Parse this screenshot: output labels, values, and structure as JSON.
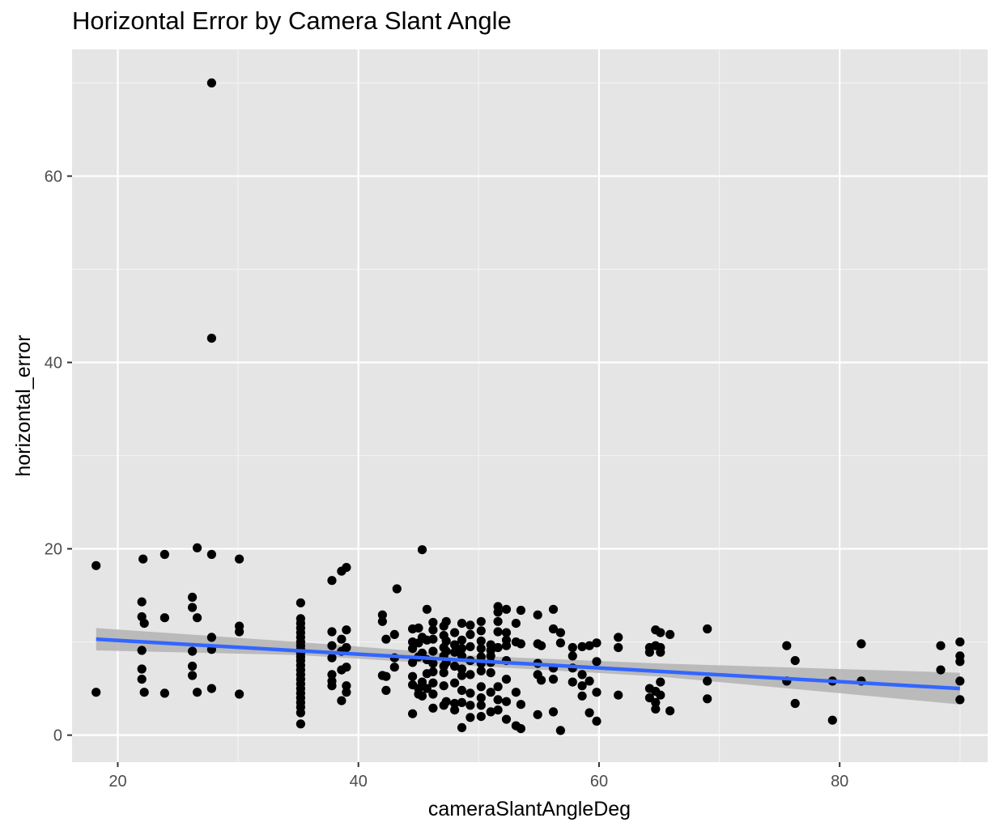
{
  "chart_data": {
    "type": "scatter",
    "title": "Horizontal Error by Camera Slant Angle",
    "xlabel": "cameraSlantAngleDeg",
    "ylabel": "horizontal_error",
    "xlim": [
      16.2,
      92.3
    ],
    "ylim": [
      -2.9,
      73.6
    ],
    "x_ticks": [
      20,
      40,
      60,
      80
    ],
    "y_ticks": [
      0,
      20,
      40,
      60
    ],
    "grid": true,
    "background": "#e5e5e5",
    "point_color": "#000000",
    "trend_color": "#3366ff",
    "band_color": "#b3b3b3",
    "trend_line": {
      "x": [
        18.2,
        90
      ],
      "y": [
        10.3,
        5.0
      ]
    },
    "confidence_band": {
      "x": [
        18.2,
        35,
        50,
        65,
        90
      ],
      "upper": [
        11.5,
        10.0,
        8.5,
        7.7,
        6.7
      ],
      "lower": [
        9.1,
        8.6,
        7.4,
        6.3,
        3.3
      ]
    },
    "points": [
      [
        18.2,
        18.2
      ],
      [
        18.2,
        4.6
      ],
      [
        22.1,
        18.9
      ],
      [
        22.0,
        14.3
      ],
      [
        22.0,
        12.7
      ],
      [
        22.2,
        12.0
      ],
      [
        22.0,
        9.1
      ],
      [
        22.0,
        7.1
      ],
      [
        22.0,
        6.0
      ],
      [
        22.2,
        4.6
      ],
      [
        23.9,
        19.4
      ],
      [
        23.9,
        12.6
      ],
      [
        23.9,
        4.5
      ],
      [
        26.6,
        20.1
      ],
      [
        26.2,
        14.8
      ],
      [
        26.2,
        13.7
      ],
      [
        26.6,
        12.6
      ],
      [
        26.2,
        9.0
      ],
      [
        26.2,
        7.4
      ],
      [
        26.2,
        6.4
      ],
      [
        26.6,
        4.6
      ],
      [
        27.8,
        70.0
      ],
      [
        27.8,
        42.6
      ],
      [
        27.8,
        19.4
      ],
      [
        27.8,
        10.5
      ],
      [
        27.8,
        9.2
      ],
      [
        27.8,
        5.0
      ],
      [
        30.1,
        18.9
      ],
      [
        30.1,
        11.7
      ],
      [
        30.1,
        11.1
      ],
      [
        30.1,
        4.4
      ],
      [
        35.2,
        14.2
      ],
      [
        35.2,
        12.5
      ],
      [
        35.2,
        12.0
      ],
      [
        35.2,
        11.5
      ],
      [
        35.2,
        11.0
      ],
      [
        35.2,
        10.5
      ],
      [
        35.2,
        10.0
      ],
      [
        35.2,
        9.6
      ],
      [
        35.2,
        9.2
      ],
      [
        35.2,
        8.8
      ],
      [
        35.2,
        8.4
      ],
      [
        35.2,
        8.0
      ],
      [
        35.2,
        7.5
      ],
      [
        35.2,
        7.0
      ],
      [
        35.2,
        6.5
      ],
      [
        35.2,
        6.0
      ],
      [
        35.2,
        5.5
      ],
      [
        35.2,
        5.0
      ],
      [
        35.2,
        4.5
      ],
      [
        35.2,
        4.0
      ],
      [
        35.2,
        3.5
      ],
      [
        35.2,
        3.0
      ],
      [
        35.2,
        2.4
      ],
      [
        35.2,
        1.2
      ],
      [
        37.8,
        16.6
      ],
      [
        37.8,
        11.1
      ],
      [
        37.8,
        9.6
      ],
      [
        37.8,
        8.3
      ],
      [
        37.8,
        6.5
      ],
      [
        37.8,
        5.8
      ],
      [
        37.8,
        5.3
      ],
      [
        38.6,
        17.6
      ],
      [
        38.6,
        10.3
      ],
      [
        38.6,
        9.0
      ],
      [
        38.6,
        7.0
      ],
      [
        38.6,
        3.7
      ],
      [
        39.0,
        18.0
      ],
      [
        39.0,
        11.3
      ],
      [
        39.0,
        9.4
      ],
      [
        39.0,
        7.3
      ],
      [
        39.0,
        5.3
      ],
      [
        39.0,
        4.6
      ],
      [
        42.0,
        12.9
      ],
      [
        42.0,
        12.2
      ],
      [
        42.0,
        6.4
      ],
      [
        42.3,
        10.3
      ],
      [
        42.3,
        6.3
      ],
      [
        42.3,
        4.8
      ],
      [
        43.0,
        10.8
      ],
      [
        43.2,
        15.7
      ],
      [
        43.0,
        8.3
      ],
      [
        43.0,
        7.3
      ],
      [
        44.5,
        11.4
      ],
      [
        44.5,
        10.0
      ],
      [
        44.5,
        9.3
      ],
      [
        44.5,
        7.8
      ],
      [
        44.5,
        6.3
      ],
      [
        44.5,
        5.4
      ],
      [
        44.5,
        2.3
      ],
      [
        45.0,
        11.5
      ],
      [
        45.0,
        9.9
      ],
      [
        45.0,
        8.4
      ],
      [
        45.0,
        5.0
      ],
      [
        45.0,
        4.4
      ],
      [
        45.3,
        19.9
      ],
      [
        45.3,
        10.5
      ],
      [
        45.3,
        8.8
      ],
      [
        45.3,
        5.7
      ],
      [
        45.3,
        4.2
      ],
      [
        45.7,
        13.5
      ],
      [
        45.7,
        10.2
      ],
      [
        45.7,
        8.1
      ],
      [
        45.7,
        6.6
      ],
      [
        45.7,
        5.0
      ],
      [
        46.2,
        12.1
      ],
      [
        46.2,
        11.3
      ],
      [
        46.2,
        10.3
      ],
      [
        46.2,
        9.0
      ],
      [
        46.2,
        7.7
      ],
      [
        46.2,
        6.8
      ],
      [
        46.2,
        5.6
      ],
      [
        46.2,
        4.4
      ],
      [
        46.2,
        2.9
      ],
      [
        47.1,
        11.7
      ],
      [
        47.1,
        10.7
      ],
      [
        47.1,
        9.4
      ],
      [
        47.1,
        8.5
      ],
      [
        47.1,
        7.4
      ],
      [
        47.1,
        6.7
      ],
      [
        47.1,
        5.3
      ],
      [
        47.1,
        3.2
      ],
      [
        47.3,
        12.2
      ],
      [
        47.3,
        10.1
      ],
      [
        47.3,
        9.0
      ],
      [
        47.3,
        7.8
      ],
      [
        47.3,
        3.6
      ],
      [
        48.0,
        11.0
      ],
      [
        48.0,
        9.7
      ],
      [
        48.0,
        8.9
      ],
      [
        48.0,
        7.4
      ],
      [
        48.0,
        5.6
      ],
      [
        48.0,
        3.4
      ],
      [
        48.0,
        2.7
      ],
      [
        48.6,
        12.0
      ],
      [
        48.6,
        10.2
      ],
      [
        48.6,
        9.3
      ],
      [
        48.6,
        8.5
      ],
      [
        48.6,
        7.1
      ],
      [
        48.6,
        6.4
      ],
      [
        48.6,
        4.8
      ],
      [
        48.6,
        3.5
      ],
      [
        48.6,
        0.8
      ],
      [
        49.3,
        11.8
      ],
      [
        49.3,
        10.8
      ],
      [
        49.3,
        9.5
      ],
      [
        49.3,
        8.0
      ],
      [
        49.3,
        6.5
      ],
      [
        49.3,
        4.5
      ],
      [
        49.3,
        3.2
      ],
      [
        49.3,
        1.9
      ],
      [
        50.2,
        12.2
      ],
      [
        50.2,
        11.2
      ],
      [
        50.2,
        10.1
      ],
      [
        50.2,
        9.3
      ],
      [
        50.2,
        8.4
      ],
      [
        50.2,
        7.7
      ],
      [
        50.2,
        6.9
      ],
      [
        50.2,
        5.2
      ],
      [
        50.2,
        4.0
      ],
      [
        50.2,
        3.2
      ],
      [
        50.2,
        2.0
      ],
      [
        51.0,
        9.7
      ],
      [
        51.0,
        9.1
      ],
      [
        51.0,
        8.5
      ],
      [
        51.0,
        7.8
      ],
      [
        51.0,
        6.7
      ],
      [
        51.0,
        4.6
      ],
      [
        51.0,
        2.5
      ],
      [
        51.6,
        13.8
      ],
      [
        51.6,
        13.2
      ],
      [
        51.6,
        12.2
      ],
      [
        51.6,
        11.1
      ],
      [
        51.6,
        9.4
      ],
      [
        51.6,
        5.2
      ],
      [
        51.6,
        3.8
      ],
      [
        51.6,
        2.7
      ],
      [
        52.3,
        13.5
      ],
      [
        52.3,
        11.0
      ],
      [
        52.3,
        10.2
      ],
      [
        52.3,
        9.6
      ],
      [
        52.3,
        8.0
      ],
      [
        52.3,
        6.0
      ],
      [
        52.3,
        3.6
      ],
      [
        52.3,
        1.7
      ],
      [
        53.1,
        12.0
      ],
      [
        53.1,
        10.0
      ],
      [
        53.1,
        4.6
      ],
      [
        53.1,
        1.0
      ],
      [
        53.5,
        13.4
      ],
      [
        53.5,
        9.8
      ],
      [
        53.5,
        3.3
      ],
      [
        53.5,
        0.7
      ],
      [
        54.9,
        12.9
      ],
      [
        54.9,
        9.8
      ],
      [
        54.9,
        7.7
      ],
      [
        54.9,
        6.5
      ],
      [
        54.9,
        2.2
      ],
      [
        55.2,
        9.6
      ],
      [
        55.2,
        5.9
      ],
      [
        56.2,
        13.5
      ],
      [
        56.2,
        11.4
      ],
      [
        56.2,
        7.2
      ],
      [
        56.2,
        6.0
      ],
      [
        56.2,
        2.5
      ],
      [
        56.8,
        11.0
      ],
      [
        56.8,
        9.9
      ],
      [
        56.8,
        0.5
      ],
      [
        57.8,
        9.4
      ],
      [
        57.8,
        8.5
      ],
      [
        57.8,
        7.2
      ],
      [
        57.8,
        5.7
      ],
      [
        58.6,
        9.5
      ],
      [
        58.6,
        6.5
      ],
      [
        58.6,
        5.3
      ],
      [
        58.6,
        4.2
      ],
      [
        59.2,
        9.6
      ],
      [
        59.2,
        5.8
      ],
      [
        59.2,
        2.4
      ],
      [
        59.8,
        9.9
      ],
      [
        59.8,
        7.9
      ],
      [
        59.8,
        4.6
      ],
      [
        59.8,
        1.5
      ],
      [
        61.6,
        10.5
      ],
      [
        61.6,
        9.4
      ],
      [
        61.6,
        4.3
      ],
      [
        64.2,
        9.4
      ],
      [
        64.2,
        8.9
      ],
      [
        64.2,
        5.0
      ],
      [
        64.2,
        4.0
      ],
      [
        64.7,
        11.3
      ],
      [
        64.7,
        9.6
      ],
      [
        64.7,
        4.7
      ],
      [
        64.7,
        3.5
      ],
      [
        64.7,
        2.8
      ],
      [
        65.1,
        11.0
      ],
      [
        65.1,
        9.4
      ],
      [
        65.1,
        8.9
      ],
      [
        65.1,
        5.7
      ],
      [
        65.1,
        4.3
      ],
      [
        65.9,
        10.8
      ],
      [
        65.9,
        2.6
      ],
      [
        69.0,
        11.4
      ],
      [
        69.0,
        5.8
      ],
      [
        69.0,
        3.9
      ],
      [
        75.6,
        9.6
      ],
      [
        75.6,
        5.8
      ],
      [
        76.3,
        8.0
      ],
      [
        76.3,
        3.4
      ],
      [
        79.4,
        5.8
      ],
      [
        79.4,
        1.6
      ],
      [
        81.8,
        9.8
      ],
      [
        81.8,
        5.8
      ],
      [
        88.4,
        9.6
      ],
      [
        88.4,
        7.0
      ],
      [
        90.0,
        10.0
      ],
      [
        90.0,
        8.5
      ],
      [
        90.0,
        7.9
      ],
      [
        90.0,
        5.8
      ],
      [
        90.0,
        3.8
      ]
    ]
  }
}
